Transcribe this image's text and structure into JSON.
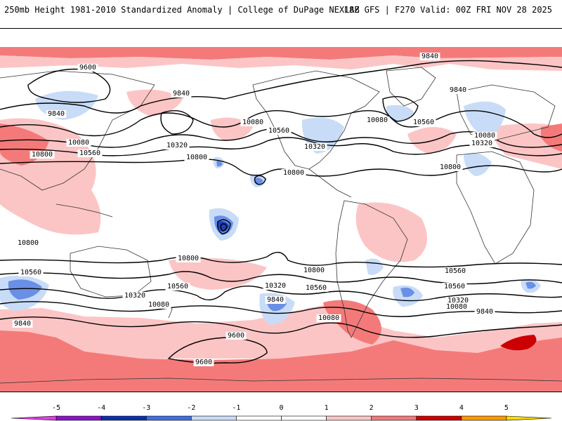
{
  "header": {
    "left_title": "250mb Height 1981-2010 Standardized Anomaly | College of DuPage NEXLAB",
    "right_title": "18Z GFS | F270 Valid: 00Z FRI NOV 28 2025"
  },
  "colors": {
    "pos1": "#fcc5c5",
    "pos2": "#f47a7a",
    "pos3": "#cc0000",
    "neg1": "#c8dcf8",
    "neg2": "#6a8fe6",
    "neg3": "#1f3fc0",
    "coast": "#333333",
    "contour": "#000000"
  },
  "contour_labels": [
    {
      "id": "c1",
      "text": "9600"
    },
    {
      "id": "c2",
      "text": "9840"
    },
    {
      "id": "c3",
      "text": "9840"
    },
    {
      "id": "c4",
      "text": "9840"
    },
    {
      "id": "c5",
      "text": "9840"
    },
    {
      "id": "c6",
      "text": "10080"
    },
    {
      "id": "c7",
      "text": "10080"
    },
    {
      "id": "c8",
      "text": "10080"
    },
    {
      "id": "c9",
      "text": "10080"
    },
    {
      "id": "c10",
      "text": "10320"
    },
    {
      "id": "c11",
      "text": "10320"
    },
    {
      "id": "c12",
      "text": "10320"
    },
    {
      "id": "c13",
      "text": "10560"
    },
    {
      "id": "c14",
      "text": "10560"
    },
    {
      "id": "c15",
      "text": "10560"
    },
    {
      "id": "c16",
      "text": "10800"
    },
    {
      "id": "c17",
      "text": "10800"
    },
    {
      "id": "c18",
      "text": "10800"
    },
    {
      "id": "c19",
      "text": "10800"
    },
    {
      "id": "c20",
      "text": "10800"
    },
    {
      "id": "c21",
      "text": "10800"
    },
    {
      "id": "c22",
      "text": "10800"
    },
    {
      "id": "c23",
      "text": "10560"
    },
    {
      "id": "c24",
      "text": "10560"
    },
    {
      "id": "c25",
      "text": "10560"
    },
    {
      "id": "c26",
      "text": "10560"
    },
    {
      "id": "c27",
      "text": "10320"
    },
    {
      "id": "c28",
      "text": "10320"
    },
    {
      "id": "c29",
      "text": "10320"
    },
    {
      "id": "c30",
      "text": "10080"
    },
    {
      "id": "c31",
      "text": "10080"
    },
    {
      "id": "c32",
      "text": "10080"
    },
    {
      "id": "c33",
      "text": "9840"
    },
    {
      "id": "c34",
      "text": "9840"
    },
    {
      "id": "c35",
      "text": "9840"
    },
    {
      "id": "c36",
      "text": "9600"
    },
    {
      "id": "c37",
      "text": "9600"
    },
    {
      "id": "c38",
      "text": "10560"
    }
  ],
  "legend": {
    "ticks": [
      "-5",
      "-4",
      "-3",
      "-2",
      "-1",
      "0",
      "1",
      "2",
      "3",
      "4",
      "5"
    ],
    "bins": [
      {
        "color": "#e040e0"
      },
      {
        "color": "#8a14c8"
      },
      {
        "color": "#0a2fa8"
      },
      {
        "color": "#3f6ee0"
      },
      {
        "color": "#c8dcf8"
      },
      {
        "color": "#ffffff"
      },
      {
        "color": "#ffffff"
      },
      {
        "color": "#fcc5c5"
      },
      {
        "color": "#f47a7a"
      },
      {
        "color": "#cc0000"
      },
      {
        "color": "#ff9900"
      },
      {
        "color": "#ffdd00"
      }
    ]
  }
}
